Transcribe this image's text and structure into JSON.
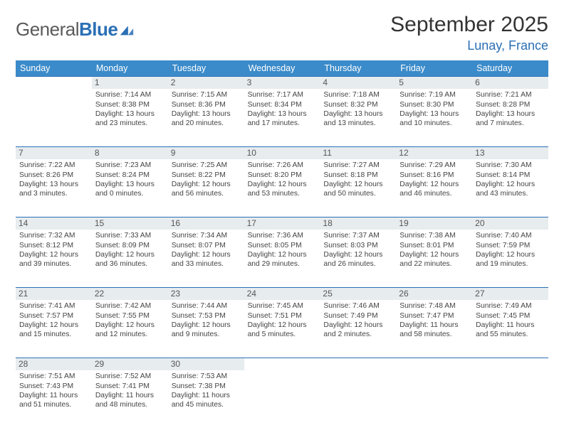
{
  "logo": {
    "text_gray": "General",
    "text_blue": "Blue",
    "mark_color": "#2a6fb5"
  },
  "header": {
    "month_title": "September 2025",
    "location": "Lunay, France"
  },
  "colors": {
    "header_bg": "#3b8bca",
    "header_fg": "#ffffff",
    "border": "#2a6fb5",
    "daynum_bg": "#e7ecef",
    "text": "#444444"
  },
  "weekdays": [
    "Sunday",
    "Monday",
    "Tuesday",
    "Wednesday",
    "Thursday",
    "Friday",
    "Saturday"
  ],
  "grid": {
    "cols": 7,
    "rows": 5,
    "start_offset": 1,
    "days_in_month": 30
  },
  "days": [
    {
      "n": 1,
      "sunrise": "7:14 AM",
      "sunset": "8:38 PM",
      "daylight": "13 hours and 23 minutes."
    },
    {
      "n": 2,
      "sunrise": "7:15 AM",
      "sunset": "8:36 PM",
      "daylight": "13 hours and 20 minutes."
    },
    {
      "n": 3,
      "sunrise": "7:17 AM",
      "sunset": "8:34 PM",
      "daylight": "13 hours and 17 minutes."
    },
    {
      "n": 4,
      "sunrise": "7:18 AM",
      "sunset": "8:32 PM",
      "daylight": "13 hours and 13 minutes."
    },
    {
      "n": 5,
      "sunrise": "7:19 AM",
      "sunset": "8:30 PM",
      "daylight": "13 hours and 10 minutes."
    },
    {
      "n": 6,
      "sunrise": "7:21 AM",
      "sunset": "8:28 PM",
      "daylight": "13 hours and 7 minutes."
    },
    {
      "n": 7,
      "sunrise": "7:22 AM",
      "sunset": "8:26 PM",
      "daylight": "13 hours and 3 minutes."
    },
    {
      "n": 8,
      "sunrise": "7:23 AM",
      "sunset": "8:24 PM",
      "daylight": "13 hours and 0 minutes."
    },
    {
      "n": 9,
      "sunrise": "7:25 AM",
      "sunset": "8:22 PM",
      "daylight": "12 hours and 56 minutes."
    },
    {
      "n": 10,
      "sunrise": "7:26 AM",
      "sunset": "8:20 PM",
      "daylight": "12 hours and 53 minutes."
    },
    {
      "n": 11,
      "sunrise": "7:27 AM",
      "sunset": "8:18 PM",
      "daylight": "12 hours and 50 minutes."
    },
    {
      "n": 12,
      "sunrise": "7:29 AM",
      "sunset": "8:16 PM",
      "daylight": "12 hours and 46 minutes."
    },
    {
      "n": 13,
      "sunrise": "7:30 AM",
      "sunset": "8:14 PM",
      "daylight": "12 hours and 43 minutes."
    },
    {
      "n": 14,
      "sunrise": "7:32 AM",
      "sunset": "8:12 PM",
      "daylight": "12 hours and 39 minutes."
    },
    {
      "n": 15,
      "sunrise": "7:33 AM",
      "sunset": "8:09 PM",
      "daylight": "12 hours and 36 minutes."
    },
    {
      "n": 16,
      "sunrise": "7:34 AM",
      "sunset": "8:07 PM",
      "daylight": "12 hours and 33 minutes."
    },
    {
      "n": 17,
      "sunrise": "7:36 AM",
      "sunset": "8:05 PM",
      "daylight": "12 hours and 29 minutes."
    },
    {
      "n": 18,
      "sunrise": "7:37 AM",
      "sunset": "8:03 PM",
      "daylight": "12 hours and 26 minutes."
    },
    {
      "n": 19,
      "sunrise": "7:38 AM",
      "sunset": "8:01 PM",
      "daylight": "12 hours and 22 minutes."
    },
    {
      "n": 20,
      "sunrise": "7:40 AM",
      "sunset": "7:59 PM",
      "daylight": "12 hours and 19 minutes."
    },
    {
      "n": 21,
      "sunrise": "7:41 AM",
      "sunset": "7:57 PM",
      "daylight": "12 hours and 15 minutes."
    },
    {
      "n": 22,
      "sunrise": "7:42 AM",
      "sunset": "7:55 PM",
      "daylight": "12 hours and 12 minutes."
    },
    {
      "n": 23,
      "sunrise": "7:44 AM",
      "sunset": "7:53 PM",
      "daylight": "12 hours and 9 minutes."
    },
    {
      "n": 24,
      "sunrise": "7:45 AM",
      "sunset": "7:51 PM",
      "daylight": "12 hours and 5 minutes."
    },
    {
      "n": 25,
      "sunrise": "7:46 AM",
      "sunset": "7:49 PM",
      "daylight": "12 hours and 2 minutes."
    },
    {
      "n": 26,
      "sunrise": "7:48 AM",
      "sunset": "7:47 PM",
      "daylight": "11 hours and 58 minutes."
    },
    {
      "n": 27,
      "sunrise": "7:49 AM",
      "sunset": "7:45 PM",
      "daylight": "11 hours and 55 minutes."
    },
    {
      "n": 28,
      "sunrise": "7:51 AM",
      "sunset": "7:43 PM",
      "daylight": "11 hours and 51 minutes."
    },
    {
      "n": 29,
      "sunrise": "7:52 AM",
      "sunset": "7:41 PM",
      "daylight": "11 hours and 48 minutes."
    },
    {
      "n": 30,
      "sunrise": "7:53 AM",
      "sunset": "7:38 PM",
      "daylight": "11 hours and 45 minutes."
    }
  ],
  "labels": {
    "sunrise_prefix": "Sunrise: ",
    "sunset_prefix": "Sunset: ",
    "daylight_prefix": "Daylight: "
  }
}
